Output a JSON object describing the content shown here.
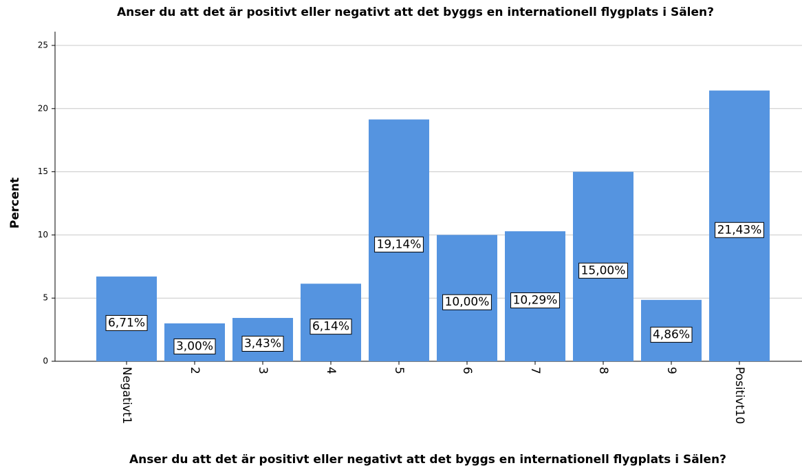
{
  "chart_data": {
    "type": "bar",
    "title": "Anser du att det är positivt eller negativt att det byggs en internationell flygplats i Sälen?",
    "x_label": "Anser du att det är positivt eller negativt att det byggs en internationell flygplats i Sälen?",
    "y_label": "Percent",
    "categories": [
      "Negativt1",
      "2",
      "3",
      "4",
      "5",
      "6",
      "7",
      "8",
      "9",
      "Positivt10"
    ],
    "values": [
      6.71,
      3.0,
      3.43,
      6.14,
      19.14,
      10.0,
      10.29,
      15.0,
      4.86,
      21.43
    ],
    "value_labels": [
      "6,71%",
      "3,00%",
      "3,43%",
      "6,14%",
      "19,14%",
      "10,00%",
      "10,29%",
      "15,00%",
      "4,86%",
      "21,43%"
    ],
    "color": "#5594e0",
    "ylim": [
      0,
      25
    ],
    "yticks": [
      0,
      5,
      10,
      15,
      20,
      25
    ],
    "grid": true
  }
}
